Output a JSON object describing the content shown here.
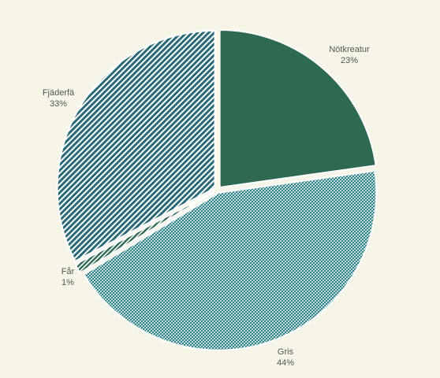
{
  "chart_data": {
    "type": "pie",
    "start_angle": "top",
    "direction": "clockwise",
    "slices": [
      {
        "label": "Nötkreatur",
        "value": 23,
        "value_label": "23%",
        "fill": "#2e6a50",
        "pattern": "solid"
      },
      {
        "label": "Gris",
        "value": 44,
        "value_label": "44%",
        "fill": "#2a7f85",
        "pattern": "dense-crosshatch"
      },
      {
        "label": "Får",
        "value": 1,
        "value_label": "1%",
        "fill": "#2e6a50",
        "pattern": "diagonal-stripes"
      },
      {
        "label": "Fjäderfä",
        "value": 33,
        "value_label": "33%",
        "fill": "#2a6a78",
        "pattern": "diagonal-stripes"
      }
    ]
  },
  "colors": {
    "background": "#f7f4e8",
    "label_text": "#555555"
  }
}
